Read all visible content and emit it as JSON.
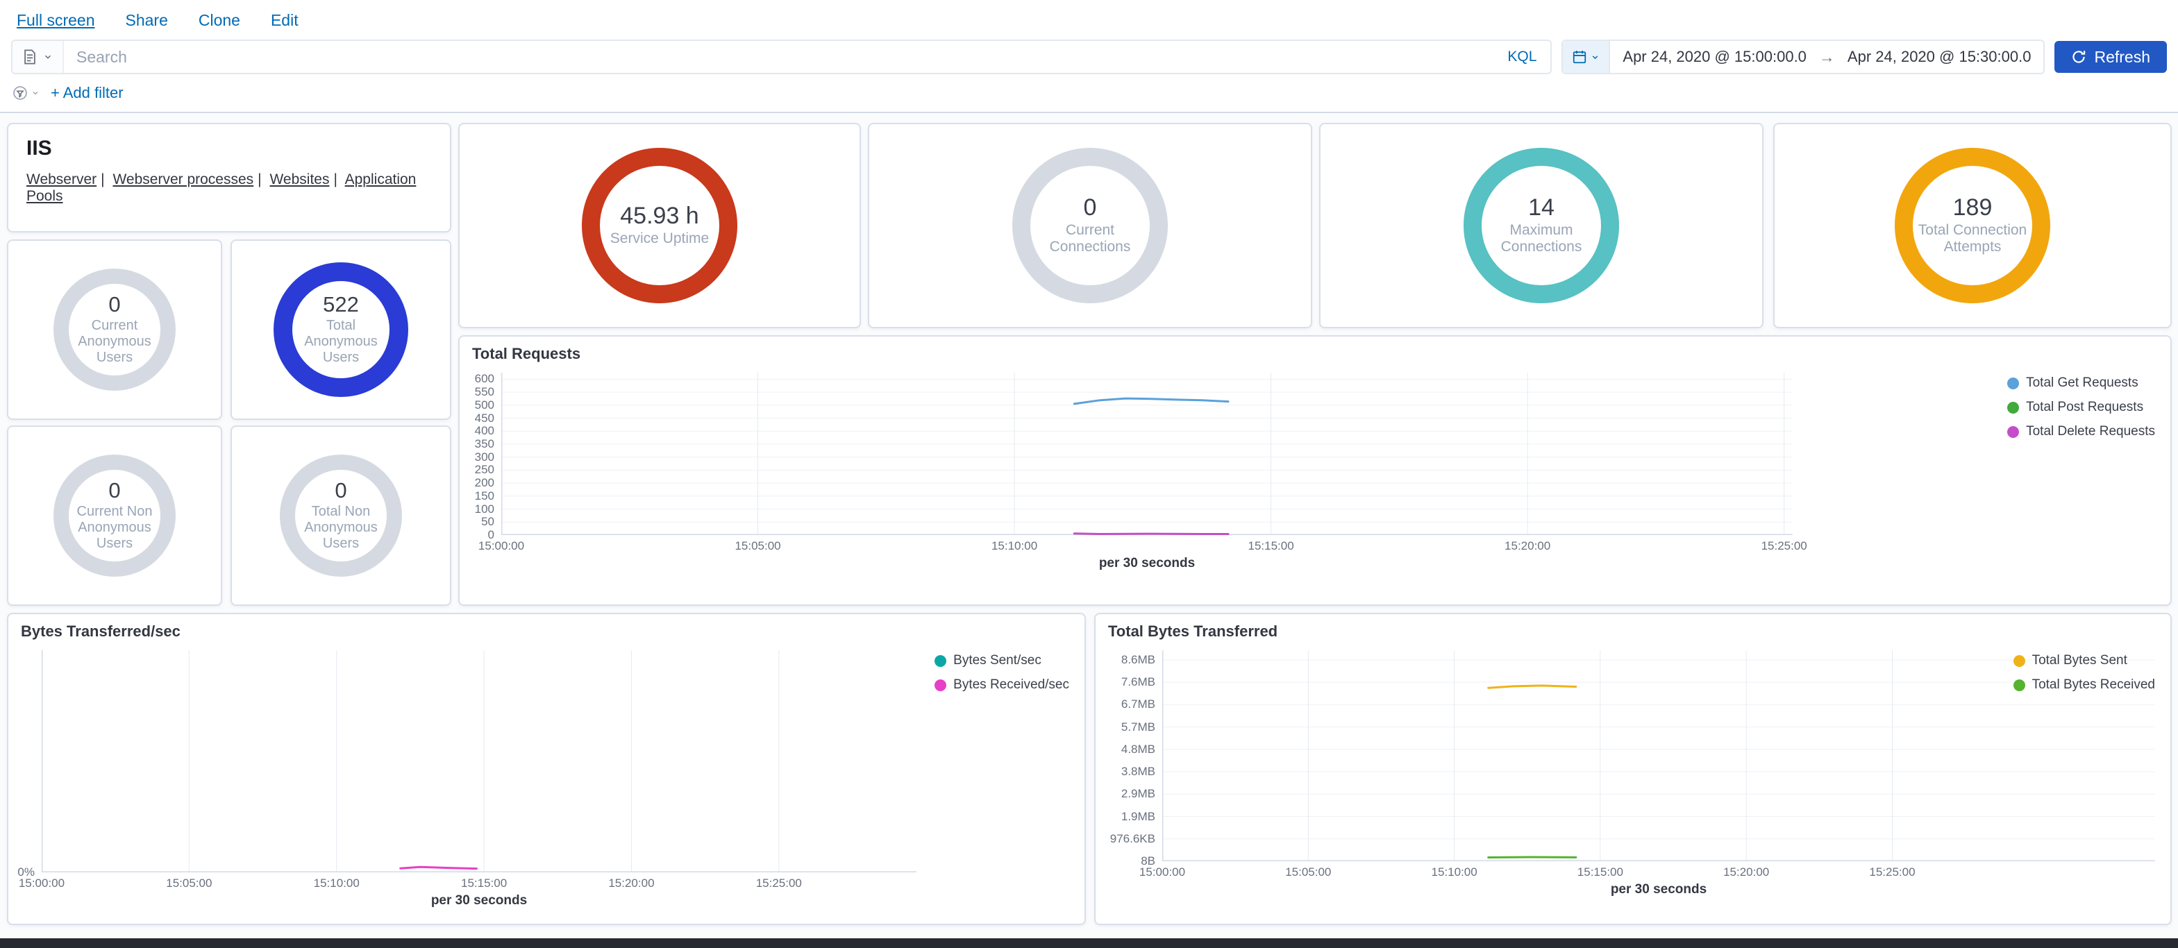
{
  "menu": {
    "items": [
      {
        "label": "Full screen",
        "active": true
      },
      {
        "label": "Share",
        "active": false
      },
      {
        "label": "Clone",
        "active": false
      },
      {
        "label": "Edit",
        "active": false
      }
    ]
  },
  "query_bar": {
    "search_placeholder": "Search",
    "language": "KQL",
    "date_from": "Apr 24, 2020 @ 15:00:00.0",
    "date_range_arrow": "→",
    "date_to": "Apr 24, 2020 @ 15:30:00.0",
    "refresh_label": "Refresh"
  },
  "filter_bar": {
    "add_filter_label": "+ Add filter"
  },
  "markdown_panel": {
    "title": "IIS",
    "separator": "|",
    "links": [
      "Webserver",
      "Webserver processes",
      "Websites",
      "Application Pools"
    ]
  },
  "gauges": [
    {
      "value": "45.93 h",
      "label": "Service Uptime",
      "ring_color": "#c9391b"
    },
    {
      "value": "0",
      "label": "Current Connections",
      "ring_color": "#d5dae2"
    },
    {
      "value": "14",
      "label": "Maximum Connections",
      "ring_color": "#57c1c3"
    },
    {
      "value": "189",
      "label": "Total Connection Attempts",
      "ring_color": "#f2a60d"
    },
    {
      "value": "0",
      "label": "Current Anonymous Users",
      "ring_color": "#d5dae2"
    },
    {
      "value": "522",
      "label": "Total Anonymous Users",
      "ring_color": "#2a3bd6"
    },
    {
      "value": "0",
      "label": "Current Non Anonymous Users",
      "ring_color": "#d5dae2"
    },
    {
      "value": "0",
      "label": "Total Non Anonymous Users",
      "ring_color": "#d5dae2"
    }
  ],
  "charts": {
    "total_requests": {
      "type": "line",
      "title": "Total Requests",
      "x_title": "per 30 seconds",
      "x_max": 1510,
      "y_min": 0,
      "y_max": 625,
      "x_ticks": [
        {
          "s": 0,
          "label": "15:00:00"
        },
        {
          "s": 300,
          "label": "15:05:00"
        },
        {
          "s": 600,
          "label": "15:10:00"
        },
        {
          "s": 900,
          "label": "15:15:00"
        },
        {
          "s": 1200,
          "label": "15:20:00"
        },
        {
          "s": 1500,
          "label": "15:25:00"
        }
      ],
      "y_ticks": [
        {
          "v": 0,
          "label": "0"
        },
        {
          "v": 50,
          "label": "50"
        },
        {
          "v": 100,
          "label": "100"
        },
        {
          "v": 150,
          "label": "150"
        },
        {
          "v": 200,
          "label": "200"
        },
        {
          "v": 250,
          "label": "250"
        },
        {
          "v": 300,
          "label": "300"
        },
        {
          "v": 350,
          "label": "350"
        },
        {
          "v": 400,
          "label": "400"
        },
        {
          "v": 450,
          "label": "450"
        },
        {
          "v": 500,
          "label": "500"
        },
        {
          "v": 550,
          "label": "550"
        },
        {
          "v": 600,
          "label": "600"
        }
      ],
      "series": [
        {
          "name": "Total Get Requests",
          "color": "#5ba1da",
          "points": [
            [
              670,
              505
            ],
            [
              700,
              519
            ],
            [
              730,
              526
            ],
            [
              760,
              524
            ],
            [
              790,
              521
            ],
            [
              820,
              519
            ],
            [
              850,
              514
            ]
          ]
        },
        {
          "name": "Total Post Requests",
          "color": "#41a93d",
          "points": []
        },
        {
          "name": "Total Delete Requests",
          "color": "#c44ec9",
          "points": [
            [
              670,
              6
            ],
            [
              700,
              4
            ],
            [
              760,
              5
            ],
            [
              820,
              4
            ],
            [
              850,
              4
            ]
          ]
        }
      ]
    },
    "bytes_per_sec": {
      "type": "line",
      "title": "Bytes Transferred/sec",
      "x_title": "per 30 seconds",
      "x_max": 1780,
      "y_min": 0,
      "y_max": 1,
      "x_ticks": [
        {
          "s": 0,
          "label": "15:00:00"
        },
        {
          "s": 300,
          "label": "15:05:00"
        },
        {
          "s": 600,
          "label": "15:10:00"
        },
        {
          "s": 900,
          "label": "15:15:00"
        },
        {
          "s": 1200,
          "label": "15:20:00"
        },
        {
          "s": 1500,
          "label": "15:25:00"
        }
      ],
      "y_ticks": [
        {
          "v": 0,
          "label": "0%"
        }
      ],
      "series": [
        {
          "name": "Bytes Sent/sec",
          "color": "#0ba7a7",
          "points": []
        },
        {
          "name": "Bytes Received/sec",
          "color": "#e73fc7",
          "points": [
            [
              730,
              0.018
            ],
            [
              770,
              0.024
            ],
            [
              830,
              0.02
            ],
            [
              885,
              0.017
            ]
          ]
        }
      ]
    },
    "total_bytes": {
      "type": "line",
      "title": "Total Bytes Transferred",
      "x_title": "per 30 seconds",
      "x_max": 2040,
      "y_min": 0,
      "y_max": 9430000,
      "x_ticks": [
        {
          "s": 0,
          "label": "15:00:00"
        },
        {
          "s": 300,
          "label": "15:05:00"
        },
        {
          "s": 600,
          "label": "15:10:00"
        },
        {
          "s": 900,
          "label": "15:15:00"
        },
        {
          "s": 1200,
          "label": "15:20:00"
        },
        {
          "s": 1500,
          "label": "15:25:00"
        }
      ],
      "y_ticks": [
        {
          "v": 8,
          "label": "8B"
        },
        {
          "v": 1000000,
          "label": "976.6KB"
        },
        {
          "v": 2000000,
          "label": "1.9MB"
        },
        {
          "v": 3000000,
          "label": "2.9MB"
        },
        {
          "v": 4000000,
          "label": "3.8MB"
        },
        {
          "v": 5000000,
          "label": "4.8MB"
        },
        {
          "v": 6000000,
          "label": "5.7MB"
        },
        {
          "v": 7000000,
          "label": "6.7MB"
        },
        {
          "v": 8000000,
          "label": "7.6MB"
        },
        {
          "v": 9000000,
          "label": "8.6MB"
        }
      ],
      "series": [
        {
          "name": "Total Bytes Sent",
          "color": "#efb31a",
          "points": [
            [
              670,
              7750000
            ],
            [
              720,
              7820000
            ],
            [
              780,
              7850000
            ],
            [
              850,
              7800000
            ]
          ]
        },
        {
          "name": "Total Bytes Received",
          "color": "#55b32f",
          "points": [
            [
              670,
              170000
            ],
            [
              760,
              185000
            ],
            [
              850,
              175000
            ]
          ]
        }
      ]
    }
  },
  "colors": {
    "link_blue": "#006BB4",
    "refresh_button": "#2258c4",
    "panel_border": "#d3dae6",
    "value_text": "#343741",
    "label_text": "#98a2b3"
  }
}
